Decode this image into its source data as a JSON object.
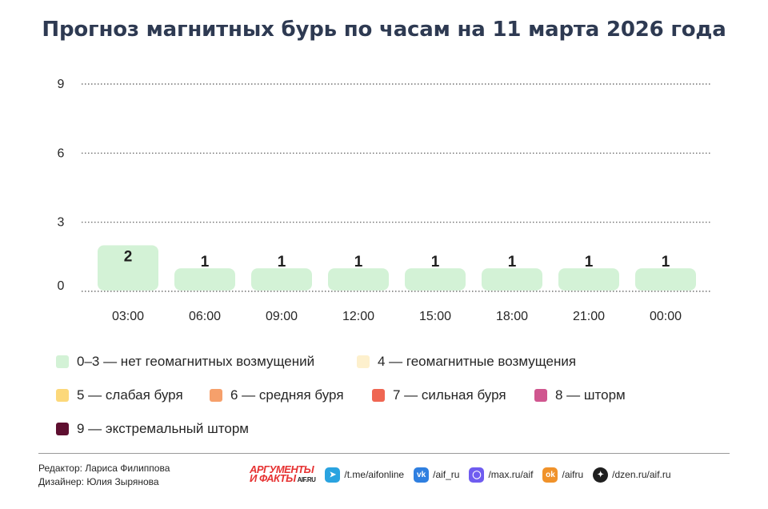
{
  "title": "Прогноз магнитных бурь по часам на 11 марта 2026 года",
  "chart_data": {
    "type": "bar",
    "title": "Прогноз магнитных бурь по часам на 11 марта 2026 года",
    "categories": [
      "03:00",
      "06:00",
      "09:00",
      "12:00",
      "15:00",
      "18:00",
      "21:00",
      "00:00"
    ],
    "values": [
      2,
      1,
      1,
      1,
      1,
      1,
      1,
      1
    ],
    "data_labels": [
      "2",
      "1",
      "1",
      "1",
      "1",
      "1",
      "1",
      "1"
    ],
    "yticks": [
      "0",
      "3",
      "6",
      "9"
    ],
    "ylim": [
      0,
      9
    ],
    "grid": "dotted horizontal",
    "xlabel": "",
    "ylabel": "",
    "bar_color": "#d3f2d6"
  },
  "legend": [
    {
      "label": "0–3 — нет геомагнитных возмущений",
      "color": "#d3f2d6"
    },
    {
      "label": "4 — геомагнитные возмущения",
      "color": "#fdf0cd"
    },
    {
      "label": "5 — слабая буря",
      "color": "#fcd87a"
    },
    {
      "label": "6 — средняя буря",
      "color": "#f6a06b"
    },
    {
      "label": "7 — сильная буря",
      "color": "#ef6652"
    },
    {
      "label": "8 — шторм",
      "color": "#d0568f"
    },
    {
      "label": "9 — экстремальный шторм",
      "color": "#5e0f30"
    }
  ],
  "credits": {
    "editor": "Редактор: Лариса Филиппова",
    "designer": "Дизайнер: Юлия Зырянова"
  },
  "brand": {
    "line1": "АРГУМЕНТЫ",
    "line2": "И ФАКТЫ",
    "site": "AIF.RU"
  },
  "socials": [
    {
      "icon": "telegram-icon",
      "label": "/t.me/aifonline",
      "color": "#2aa3e0"
    },
    {
      "icon": "vk-icon",
      "label": "/aif_ru",
      "color": "#2f7fe0"
    },
    {
      "icon": "max-icon",
      "label": "/max.ru/aif",
      "color": "#6f5cf0"
    },
    {
      "icon": "odnoklassniki-icon",
      "label": "/aifru",
      "color": "#f0922a"
    },
    {
      "icon": "dzen-icon",
      "label": "/dzen.ru/aif.ru",
      "color": "#1f1f1f"
    }
  ]
}
